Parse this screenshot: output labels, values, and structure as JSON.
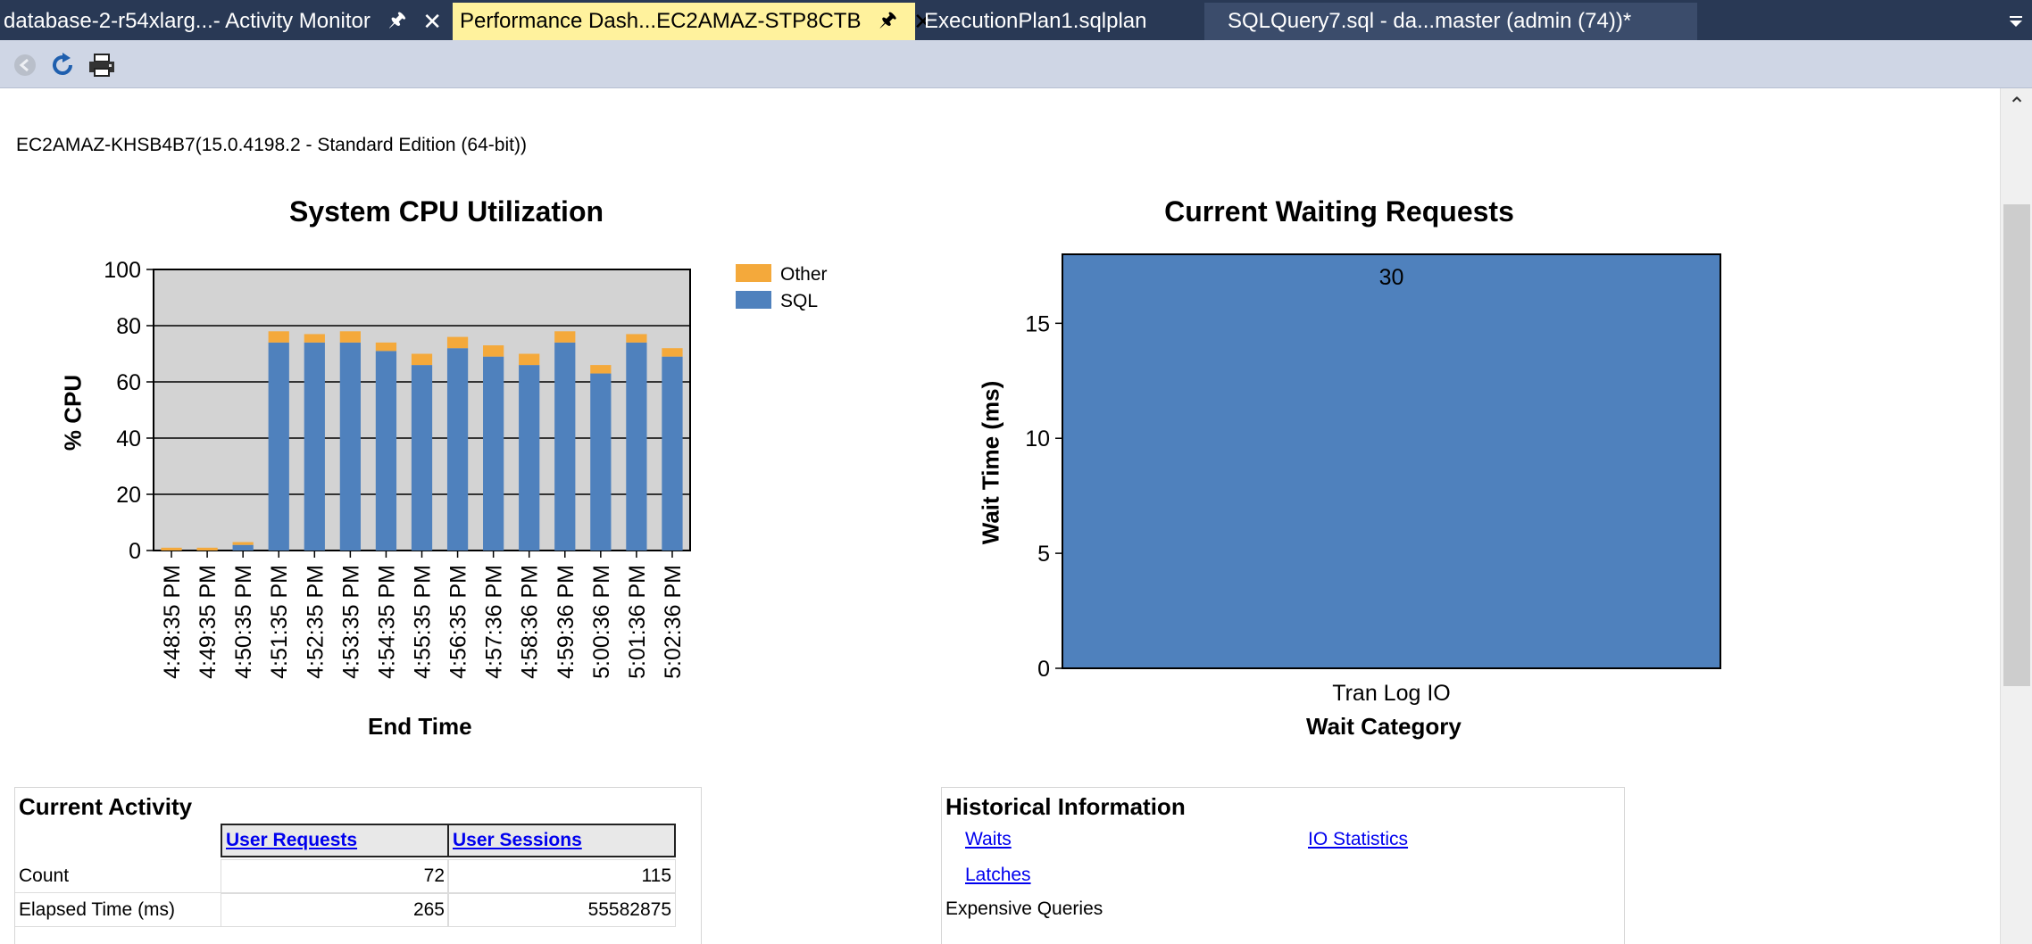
{
  "tabs": [
    {
      "label": "database-2-r54xlarg...- Activity Monitor",
      "active": false,
      "pinned": true,
      "closable": true
    },
    {
      "label": "Performance Dash...EC2AMAZ-STP8CTB",
      "active": true,
      "pinned": true,
      "closable": true
    },
    {
      "label": "ExecutionPlan1.sqlplan",
      "active": false
    },
    {
      "label": "SQLQuery7.sql - da...master (admin (74))*",
      "active": false
    }
  ],
  "tab_overflow_icon": "dropdown-arrow-icon",
  "toolbar": {
    "back_icon": "back-arrow-icon",
    "refresh_icon": "refresh-icon",
    "print_icon": "printer-icon"
  },
  "server_info": "EC2AMAZ-KHSB4B7(15.0.4198.2 - Standard Edition (64-bit))",
  "chart_data": [
    {
      "type": "bar",
      "stacked": true,
      "title": "System CPU Utilization",
      "xlabel": "End Time",
      "ylabel": "% CPU",
      "ylim": [
        0,
        100
      ],
      "yticks": [
        0,
        20,
        40,
        60,
        80,
        100
      ],
      "grid": true,
      "legend": "right",
      "categories": [
        "4:48:35 PM",
        "4:49:35 PM",
        "4:50:35 PM",
        "4:51:35 PM",
        "4:52:35 PM",
        "4:53:35 PM",
        "4:54:35 PM",
        "4:55:35 PM",
        "4:56:35 PM",
        "4:57:36 PM",
        "4:58:36 PM",
        "4:59:36 PM",
        "5:00:36 PM",
        "5:01:36 PM",
        "5:02:36 PM"
      ],
      "series": [
        {
          "name": "SQL",
          "color": "#4f81bd",
          "values": [
            0,
            0,
            2,
            74,
            74,
            74,
            71,
            66,
            72,
            69,
            66,
            74,
            63,
            74,
            69
          ]
        },
        {
          "name": "Other",
          "color": "#f4a93b",
          "values": [
            1,
            1,
            1,
            4,
            3,
            4,
            3,
            4,
            4,
            4,
            4,
            4,
            3,
            3,
            3
          ]
        }
      ]
    },
    {
      "type": "bar",
      "title": "Current Waiting Requests",
      "xlabel": "Wait Category",
      "ylabel": "Wait Time (ms)",
      "ylim": [
        0,
        18
      ],
      "yticks": [
        0,
        5,
        10,
        15
      ],
      "grid": false,
      "categories": [
        "Tran Log IO"
      ],
      "values": [
        30
      ],
      "data_labels": [
        "30"
      ],
      "color": "#4f81bd"
    }
  ],
  "current_activity": {
    "title": "Current Activity",
    "headers": [
      "User Requests",
      "User Sessions"
    ],
    "rows": [
      {
        "label": "Count",
        "values": [
          "72",
          "115"
        ]
      },
      {
        "label": "Elapsed Time (ms)",
        "values": [
          "265",
          "55582875"
        ]
      }
    ]
  },
  "historical_information": {
    "title": "Historical Information",
    "links": [
      "Waits",
      "Latches",
      "IO Statistics"
    ],
    "static": "Expensive Queries"
  }
}
